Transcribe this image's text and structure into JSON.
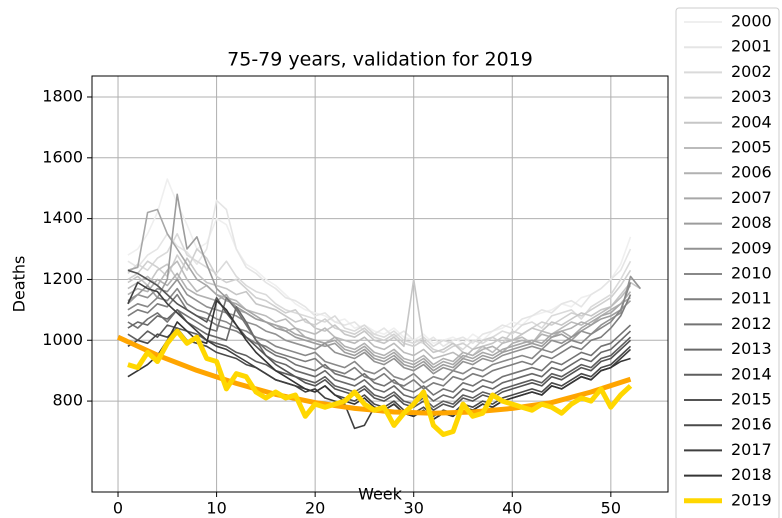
{
  "chart_data": {
    "type": "line",
    "title": "75-79 years, validation for 2019",
    "xlabel": "Week",
    "ylabel": "Deaths",
    "x": [
      1,
      2,
      3,
      4,
      5,
      6,
      7,
      8,
      9,
      10,
      11,
      12,
      13,
      14,
      15,
      16,
      17,
      18,
      19,
      20,
      21,
      22,
      23,
      24,
      25,
      26,
      27,
      28,
      29,
      30,
      31,
      32,
      33,
      34,
      35,
      36,
      37,
      38,
      39,
      40,
      41,
      42,
      43,
      44,
      45,
      46,
      47,
      48,
      49,
      50,
      51,
      52,
      53
    ],
    "series": [
      {
        "name": "2000",
        "color": "#efefef",
        "values": [
          1280,
          1300,
          1350,
          1420,
          1530,
          1450,
          1380,
          1300,
          1320,
          1400,
          1380,
          1300,
          1250,
          1230,
          1200,
          1180,
          1150,
          1120,
          1100,
          1090,
          1080,
          1060,
          1070,
          1040,
          1050,
          1030,
          1020,
          1040,
          1010,
          1000,
          1020,
          990,
          1000,
          1010,
          990,
          1020,
          1000,
          1030,
          1040,
          1060,
          1050,
          1080,
          1090,
          1100,
          1120,
          1110,
          1140,
          1150,
          1170,
          1200,
          1250,
          1340,
          null
        ]
      },
      {
        "name": "2001",
        "color": "#e5e5e5",
        "values": [
          1260,
          1240,
          1280,
          1300,
          1350,
          1310,
          1290,
          1250,
          1300,
          1460,
          1430,
          1300,
          1240,
          1220,
          1190,
          1170,
          1140,
          1130,
          1110,
          1080,
          1090,
          1060,
          1050,
          1060,
          1030,
          1020,
          1040,
          1010,
          1030,
          1000,
          990,
          1010,
          980,
          1000,
          1010,
          990,
          1020,
          1030,
          1050,
          1040,
          1070,
          1080,
          1100,
          1090,
          1120,
          1130,
          1110,
          1150,
          1170,
          1200,
          1230,
          1300,
          null
        ]
      },
      {
        "name": "2002",
        "color": "#dadada",
        "values": [
          1220,
          1250,
          1230,
          1270,
          1290,
          1350,
          1280,
          1260,
          1240,
          1220,
          1260,
          1210,
          1180,
          1160,
          1150,
          1120,
          1100,
          1090,
          1080,
          1070,
          1060,
          1080,
          1040,
          1030,
          1050,
          1020,
          1010,
          1030,
          1000,
          990,
          1010,
          980,
          1000,
          990,
          970,
          1000,
          990,
          1010,
          1030,
          1020,
          1050,
          1060,
          1040,
          1080,
          1090,
          1100,
          1070,
          1110,
          1130,
          1150,
          1200,
          1260,
          null
        ]
      },
      {
        "name": "2003",
        "color": "#d0d0d0",
        "values": [
          1200,
          1220,
          1260,
          1240,
          1210,
          1280,
          1230,
          1300,
          1270,
          1210,
          1190,
          1200,
          1170,
          1140,
          1130,
          1110,
          1090,
          1100,
          1060,
          1050,
          1070,
          1040,
          1030,
          1020,
          1040,
          1010,
          1000,
          1020,
          990,
          980,
          1000,
          970,
          960,
          980,
          990,
          970,
          1000,
          1010,
          990,
          1030,
          1020,
          1040,
          1060,
          1050,
          1070,
          1090,
          1080,
          1100,
          1120,
          1140,
          1180,
          1230,
          null
        ]
      },
      {
        "name": "2004",
        "color": "#c6c6c6",
        "values": [
          1190,
          1210,
          1180,
          1230,
          1250,
          1200,
          1270,
          1220,
          1190,
          1180,
          1170,
          1150,
          1160,
          1120,
          1110,
          1100,
          1080,
          1060,
          1070,
          1040,
          1030,
          1050,
          1020,
          1010,
          1030,
          1000,
          990,
          1010,
          980,
          1200,
          990,
          960,
          970,
          990,
          960,
          950,
          980,
          990,
          1010,
          1000,
          1020,
          1040,
          1030,
          1060,
          1050,
          1070,
          1090,
          1080,
          1100,
          1110,
          1150,
          1190,
          1170
        ]
      },
      {
        "name": "2005",
        "color": "#bbbbbb",
        "values": [
          1170,
          1190,
          1210,
          1180,
          1230,
          1260,
          1200,
          1160,
          1180,
          1150,
          1140,
          1130,
          1100,
          1090,
          1080,
          1060,
          1070,
          1040,
          1030,
          1020,
          1040,
          1010,
          1000,
          990,
          1010,
          980,
          970,
          990,
          960,
          950,
          970,
          940,
          950,
          960,
          940,
          970,
          980,
          960,
          990,
          1000,
          1010,
          990,
          1030,
          1020,
          1040,
          1060,
          1050,
          1070,
          1090,
          1110,
          1140,
          1180,
          null
        ]
      },
      {
        "name": "2006",
        "color": "#b1b1b1",
        "values": [
          1150,
          1170,
          1160,
          1200,
          1180,
          1220,
          1170,
          1150,
          1140,
          1130,
          1150,
          1100,
          1090,
          1070,
          1060,
          1050,
          1030,
          1040,
          1010,
          1000,
          990,
          1010,
          980,
          970,
          990,
          960,
          950,
          970,
          940,
          930,
          950,
          920,
          940,
          930,
          960,
          950,
          970,
          980,
          960,
          990,
          1000,
          990,
          1020,
          1010,
          1030,
          1040,
          1060,
          1050,
          1080,
          1100,
          1120,
          1160,
          null
        ]
      },
      {
        "name": "2007",
        "color": "#a7a7a7",
        "values": [
          1230,
          1240,
          1420,
          1430,
          1350,
          1300,
          1250,
          1200,
          1180,
          1150,
          1130,
          1120,
          1100,
          1080,
          1060,
          1050,
          1040,
          1020,
          1010,
          1000,
          990,
          1000,
          970,
          960,
          980,
          950,
          940,
          960,
          930,
          920,
          940,
          910,
          930,
          920,
          950,
          940,
          960,
          950,
          970,
          980,
          990,
          1000,
          990,
          1020,
          1030,
          1010,
          1040,
          1060,
          1080,
          1090,
          1120,
          1140,
          null
        ]
      },
      {
        "name": "2008",
        "color": "#9c9c9c",
        "values": [
          1120,
          1150,
          1180,
          1140,
          1200,
          1480,
          1300,
          1340,
          1250,
          1170,
          1140,
          1110,
          1090,
          1070,
          1060,
          1040,
          1030,
          1010,
          1000,
          990,
          980,
          990,
          960,
          950,
          970,
          940,
          930,
          950,
          920,
          910,
          930,
          900,
          920,
          910,
          940,
          930,
          950,
          940,
          960,
          970,
          980,
          990,
          980,
          1010,
          1020,
          1000,
          1030,
          1050,
          1070,
          1080,
          1100,
          1130,
          null
        ]
      },
      {
        "name": "2009",
        "color": "#929292",
        "values": [
          1130,
          1150,
          1140,
          1170,
          1160,
          1200,
          1150,
          1130,
          1110,
          1100,
          1090,
          1080,
          1060,
          1050,
          1030,
          1020,
          1000,
          990,
          980,
          970,
          990,
          960,
          950,
          940,
          960,
          930,
          920,
          940,
          910,
          900,
          920,
          890,
          910,
          900,
          930,
          920,
          940,
          930,
          950,
          960,
          970,
          980,
          970,
          1000,
          990,
          1010,
          1030,
          1020,
          1050,
          1070,
          1090,
          1210,
          1170
        ]
      },
      {
        "name": "2010",
        "color": "#888888",
        "values": [
          1100,
          1120,
          1110,
          1140,
          1130,
          1170,
          1120,
          1100,
          1090,
          1070,
          1060,
          1040,
          1030,
          1010,
          1000,
          980,
          970,
          960,
          950,
          960,
          930,
          920,
          910,
          930,
          900,
          890,
          910,
          880,
          870,
          890,
          860,
          880,
          870,
          900,
          890,
          910,
          900,
          920,
          930,
          940,
          950,
          940,
          970,
          960,
          980,
          1000,
          990,
          1020,
          1040,
          1060,
          1100,
          1190,
          null
        ]
      },
      {
        "name": "2011",
        "color": "#7d7d7d",
        "values": [
          1080,
          1100,
          1090,
          1120,
          1110,
          1150,
          1100,
          1080,
          1070,
          1050,
          1040,
          1030,
          1010,
          990,
          980,
          960,
          950,
          940,
          930,
          940,
          910,
          900,
          890,
          910,
          880,
          870,
          890,
          860,
          850,
          870,
          840,
          860,
          850,
          880,
          870,
          890,
          880,
          900,
          910,
          920,
          930,
          920,
          950,
          940,
          960,
          980,
          970,
          1000,
          1010,
          1040,
          1080,
          1150,
          null
        ]
      },
      {
        "name": "2012",
        "color": "#737373",
        "values": [
          1060,
          1040,
          1070,
          1090,
          1060,
          1100,
          1080,
          1060,
          1040,
          1030,
          1140,
          1100,
          1050,
          1000,
          970,
          950,
          940,
          920,
          910,
          900,
          920,
          890,
          880,
          870,
          890,
          860,
          850,
          870,
          840,
          830,
          850,
          820,
          840,
          830,
          860,
          850,
          870,
          860,
          880,
          890,
          900,
          910,
          900,
          930,
          920,
          940,
          960,
          950,
          980,
          990,
          1020,
          1050,
          null
        ]
      },
      {
        "name": "2013",
        "color": "#696969",
        "values": [
          1040,
          1060,
          1050,
          1080,
          1070,
          1100,
          1060,
          1040,
          1020,
          1010,
          1000,
          1110,
          1060,
          1000,
          950,
          930,
          920,
          900,
          890,
          880,
          900,
          870,
          860,
          850,
          870,
          840,
          830,
          850,
          820,
          810,
          830,
          800,
          820,
          810,
          840,
          830,
          850,
          840,
          860,
          870,
          880,
          890,
          880,
          910,
          900,
          920,
          940,
          930,
          960,
          970,
          1000,
          1030,
          null
        ]
      },
      {
        "name": "2014",
        "color": "#5e5e5e",
        "values": [
          1020,
          1000,
          1030,
          1010,
          1050,
          1040,
          1030,
          1020,
          1000,
          990,
          980,
          960,
          950,
          930,
          920,
          900,
          890,
          880,
          870,
          860,
          880,
          850,
          840,
          830,
          850,
          820,
          810,
          830,
          800,
          790,
          810,
          780,
          800,
          790,
          820,
          810,
          830,
          820,
          840,
          850,
          860,
          870,
          860,
          890,
          880,
          900,
          920,
          910,
          940,
          950,
          980,
          1010,
          null
        ]
      },
      {
        "name": "2015",
        "color": "#545454",
        "values": [
          1230,
          1220,
          1200,
          1180,
          1150,
          1120,
          1100,
          1080,
          1060,
          1140,
          1090,
          1050,
          1010,
          980,
          950,
          920,
          900,
          880,
          860,
          850,
          870,
          840,
          830,
          820,
          840,
          810,
          800,
          820,
          790,
          780,
          800,
          770,
          790,
          780,
          810,
          800,
          820,
          810,
          830,
          840,
          850,
          860,
          850,
          880,
          870,
          890,
          910,
          900,
          930,
          940,
          970,
          1000,
          null
        ]
      },
      {
        "name": "2016",
        "color": "#4a4a4a",
        "values": [
          980,
          1000,
          990,
          1020,
          1010,
          1040,
          1000,
          990,
          980,
          960,
          950,
          940,
          920,
          910,
          890,
          870,
          860,
          850,
          840,
          830,
          850,
          820,
          810,
          800,
          820,
          790,
          780,
          800,
          770,
          760,
          780,
          750,
          770,
          760,
          790,
          780,
          800,
          790,
          810,
          820,
          830,
          840,
          830,
          860,
          850,
          870,
          890,
          880,
          910,
          920,
          950,
          980,
          null
        ]
      },
      {
        "name": "2017",
        "color": "#3f3f3f",
        "values": [
          1120,
          1190,
          1170,
          1160,
          1120,
          1090,
          1060,
          1030,
          1000,
          980,
          970,
          950,
          930,
          910,
          890,
          870,
          860,
          850,
          830,
          840,
          810,
          800,
          790,
          710,
          720,
          780,
          770,
          790,
          760,
          750,
          770,
          740,
          760,
          750,
          780,
          770,
          790,
          780,
          800,
          810,
          820,
          830,
          820,
          850,
          840,
          860,
          880,
          870,
          900,
          910,
          940,
          970,
          null
        ]
      },
      {
        "name": "2018",
        "color": "#353535",
        "values": [
          880,
          900,
          920,
          950,
          1000,
          1060,
          1030,
          1000,
          990,
          1130,
          1100,
          1050,
          1000,
          960,
          930,
          900,
          880,
          860,
          840,
          830,
          850,
          820,
          800,
          790,
          810,
          780,
          770,
          790,
          760,
          750,
          770,
          740,
          760,
          750,
          780,
          770,
          790,
          780,
          800,
          810,
          820,
          830,
          820,
          850,
          840,
          860,
          880,
          870,
          900,
          910,
          930,
          940,
          null
        ]
      },
      {
        "name": "2019",
        "color": "#ffd700",
        "values": [
          920,
          910,
          960,
          930,
          990,
          1030,
          990,
          1010,
          940,
          930,
          840,
          890,
          880,
          830,
          810,
          830,
          810,
          820,
          750,
          790,
          780,
          790,
          800,
          830,
          790,
          770,
          780,
          720,
          760,
          790,
          830,
          720,
          690,
          700,
          790,
          750,
          760,
          820,
          800,
          790,
          780,
          770,
          790,
          780,
          760,
          790,
          810,
          800,
          840,
          780,
          820,
          850,
          null
        ]
      }
    ],
    "fit": {
      "color": "#ffa500",
      "x": [
        0,
        4,
        8,
        12,
        16,
        20,
        24,
        28,
        32,
        36,
        40,
        44,
        48,
        52
      ],
      "values": [
        1010,
        951,
        901,
        858,
        822,
        795,
        776,
        764,
        760,
        764,
        776,
        795,
        830,
        872
      ]
    },
    "xlim": [
      -2.64,
      55.8
    ],
    "ylim": [
      501,
      1869
    ],
    "xticks": [
      0,
      10,
      20,
      30,
      40,
      50
    ],
    "yticks": [
      800,
      1000,
      1200,
      1400,
      1600,
      1800
    ],
    "grid": true,
    "legend": "outside right"
  }
}
